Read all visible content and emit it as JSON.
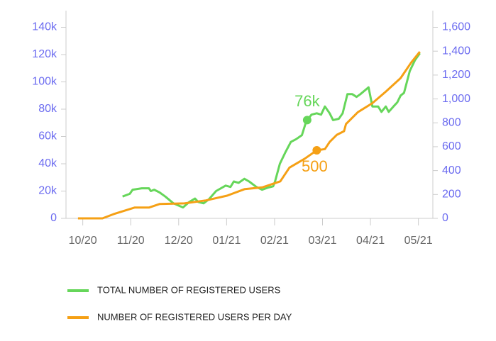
{
  "chart_data": {
    "type": "line",
    "xlim": [
      -0.35,
      7.3
    ],
    "xticks": [
      {
        "value": 0,
        "label": "10/20"
      },
      {
        "value": 1,
        "label": "11/20"
      },
      {
        "value": 2,
        "label": "12/20"
      },
      {
        "value": 3,
        "label": "01/21"
      },
      {
        "value": 4,
        "label": "02/21"
      },
      {
        "value": 5,
        "label": "03/21"
      },
      {
        "value": 6,
        "label": "04/21"
      },
      {
        "value": 7,
        "label": "05/21"
      }
    ],
    "ylim": [
      0,
      140000
    ],
    "yticks": [
      0,
      {
        "value": 20000,
        "label": "20k"
      },
      {
        "value": 40000,
        "label": "40k"
      },
      {
        "value": 60000,
        "label": "60k"
      },
      {
        "value": 80000,
        "label": "80k"
      },
      {
        "value": 100000,
        "label": "100k"
      },
      {
        "value": 120000,
        "label": "120k"
      },
      {
        "value": 140000,
        "label": "140k"
      }
    ],
    "y2lim": [
      0,
      1600
    ],
    "y2ticks": [
      0,
      200,
      400,
      600,
      800,
      {
        "value": 1000,
        "label": "1,000"
      },
      {
        "value": 1200,
        "label": "1,200"
      },
      {
        "value": 1400,
        "label": "1,400"
      },
      {
        "value": 1600,
        "label": "1,600"
      }
    ],
    "series": [
      {
        "name": "TOTAL NUMBER OF REGISTERED USERS",
        "color": "#66d65a",
        "axis": "y",
        "x": [
          0.83,
          0.98,
          1.04,
          1.23,
          1.38,
          1.42,
          1.49,
          1.6,
          1.72,
          1.89,
          2.09,
          2.22,
          2.34,
          2.41,
          2.52,
          2.63,
          2.78,
          2.98,
          3.08,
          3.15,
          3.25,
          3.37,
          3.47,
          3.62,
          3.74,
          3.86,
          3.97,
          4.01,
          4.11,
          4.22,
          4.34,
          4.45,
          4.57,
          4.66,
          4.77,
          4.88,
          4.97,
          5.05,
          5.15,
          5.22,
          5.34,
          5.42,
          5.52,
          5.62,
          5.71,
          5.79,
          5.96,
          6.04,
          6.16,
          6.23,
          6.32,
          6.38,
          6.48,
          6.56,
          6.63,
          6.7,
          6.82,
          6.93,
          7.03
        ],
        "values": [
          16000,
          18000,
          21000,
          22000,
          22000,
          20000,
          21000,
          19000,
          16000,
          11000,
          8000,
          12000,
          14500,
          12000,
          11000,
          14000,
          20000,
          24000,
          23000,
          27000,
          26000,
          29000,
          27000,
          23000,
          21000,
          22500,
          23500,
          27000,
          40000,
          48000,
          56000,
          58000,
          61000,
          71000,
          76000,
          77000,
          76000,
          82000,
          77000,
          72000,
          73000,
          77000,
          91000,
          91000,
          89000,
          91000,
          96000,
          82000,
          82000,
          78000,
          82000,
          78000,
          82000,
          85000,
          90000,
          92000,
          108000,
          116000,
          121000
        ]
      },
      {
        "name": "NUMBER OF REGISTERED USERS PER DAY",
        "color": "#f5a015",
        "axis": "y2",
        "x": [
          -0.1,
          0.41,
          0.64,
          1.08,
          1.38,
          1.6,
          2.12,
          2.57,
          3.01,
          3.38,
          3.75,
          4.12,
          4.31,
          4.63,
          4.88,
          5.05,
          5.15,
          5.3,
          5.45,
          5.49,
          5.74,
          6.04,
          6.33,
          6.63,
          6.85,
          7.03
        ],
        "values": [
          0,
          0,
          35,
          90,
          90,
          120,
          125,
          150,
          190,
          245,
          260,
          310,
          425,
          500,
          570,
          580,
          640,
          700,
          730,
          790,
          890,
          965,
          1065,
          1175,
          1305,
          1395
        ]
      }
    ],
    "annotations": [
      {
        "x": 4.68,
        "y": 72000,
        "axis": "y",
        "label": "76k",
        "color": "#66d65a"
      },
      {
        "x": 4.88,
        "y": 570,
        "axis": "y2",
        "label": "500",
        "color": "#f5a015"
      }
    ]
  }
}
